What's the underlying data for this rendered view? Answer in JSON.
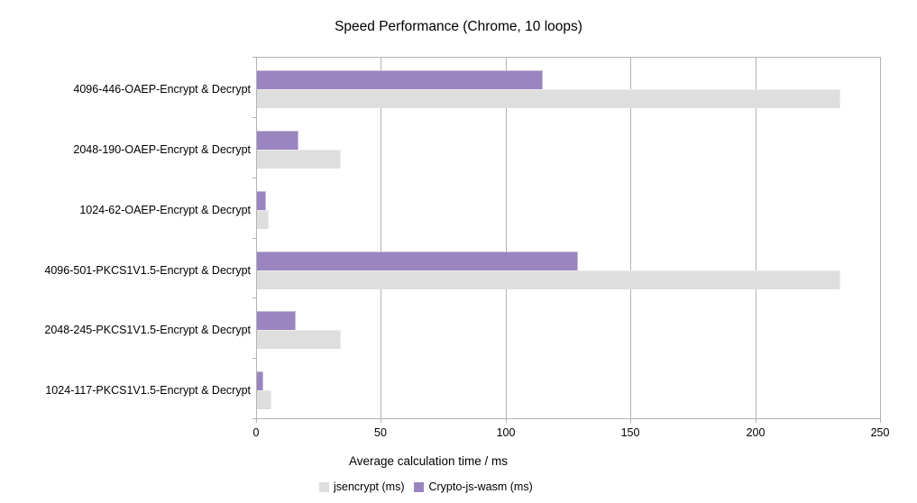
{
  "chart_data": {
    "type": "bar",
    "orientation": "horizontal",
    "title": "Speed Performance (Chrome, 10 loops)",
    "xlabel": "Average calculation time / ms",
    "xlim": [
      0,
      250
    ],
    "xticks": [
      0,
      50,
      100,
      150,
      200,
      250
    ],
    "grid": true,
    "legend_position": "bottom",
    "axis_color": "#b3b3b3",
    "categories": [
      "4096-446-OAEP-Encrypt & Decrypt",
      "2048-190-OAEP-Encrypt & Decrypt",
      "1024-62-OAEP-Encrypt & Decrypt",
      "4096-501-PKCS1V1.5-Encrypt & Decrypt",
      "2048-245-PKCS1V1.5-Encrypt & Decrypt",
      "1024-117-PKCS1V1.5-Encrypt & Decrypt"
    ],
    "series": [
      {
        "name": "jsencrypt (ms)",
        "color": "#dedede",
        "border_color": "#ebebeb",
        "values": [
          234,
          34,
          5,
          234,
          34,
          6
        ]
      },
      {
        "name": "Crypto-js-wasm (ms)",
        "color": "#9a85c0",
        "border_color": "#c5b8da",
        "values": [
          115,
          17,
          4,
          129,
          16,
          3
        ]
      }
    ]
  }
}
